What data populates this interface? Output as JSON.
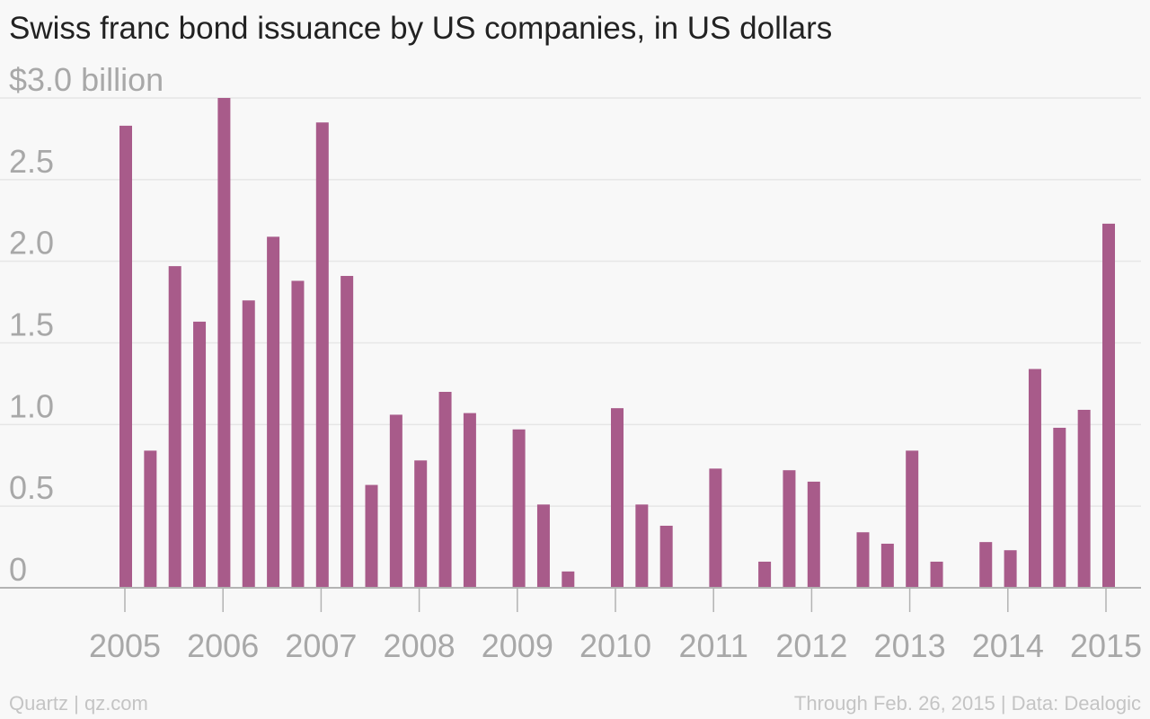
{
  "header": {
    "title": "Swiss franc bond issuance by US companies, in US dollars"
  },
  "footer": {
    "source_left": "Quartz | qz.com",
    "source_right": "Through Feb. 26, 2015 | Data: Dealogic"
  },
  "colors": {
    "bar": "#a85b8a",
    "grid": "#e6e6e6",
    "axis": "#b3b3b3",
    "tick_text": "#a8a8a8",
    "background": "#f8f8f8"
  },
  "chart_data": {
    "type": "bar",
    "title": "Swiss franc bond issuance by US companies, in US dollars",
    "xlabel": "",
    "ylabel": "",
    "ylim": [
      0,
      3.0
    ],
    "y_ticks": [
      {
        "value": 0,
        "label": "0"
      },
      {
        "value": 0.5,
        "label": "0.5"
      },
      {
        "value": 1.0,
        "label": "1.0"
      },
      {
        "value": 1.5,
        "label": "1.5"
      },
      {
        "value": 2.0,
        "label": "2.0"
      },
      {
        "value": 2.5,
        "label": "2.5"
      },
      {
        "value": 3.0,
        "label": "$3.0 billion"
      }
    ],
    "x_ticks": [
      "2005",
      "2006",
      "2007",
      "2008",
      "2009",
      "2010",
      "2011",
      "2012",
      "2013",
      "2014",
      "2015"
    ],
    "grid": true,
    "legend": "none",
    "categories": [
      "2005 Q1",
      "2005 Q2",
      "2005 Q3",
      "2005 Q4",
      "2006 Q1",
      "2006 Q2",
      "2006 Q3",
      "2006 Q4",
      "2007 Q1",
      "2007 Q2",
      "2007 Q3",
      "2007 Q4",
      "2008 Q1",
      "2008 Q2",
      "2008 Q3",
      "2008 Q4",
      "2009 Q1",
      "2009 Q2",
      "2009 Q3",
      "2009 Q4",
      "2010 Q1",
      "2010 Q2",
      "2010 Q3",
      "2010 Q4",
      "2011 Q1",
      "2011 Q2",
      "2011 Q3",
      "2011 Q4",
      "2012 Q1",
      "2012 Q2",
      "2012 Q3",
      "2012 Q4",
      "2013 Q1",
      "2013 Q2",
      "2013 Q3",
      "2013 Q4",
      "2014 Q1",
      "2014 Q2",
      "2014 Q3",
      "2014 Q4",
      "2015 Q1"
    ],
    "values": [
      2.83,
      0.84,
      1.97,
      1.63,
      3.0,
      1.76,
      2.15,
      1.88,
      2.85,
      1.91,
      0.63,
      1.06,
      0.78,
      1.2,
      1.07,
      0.0,
      0.97,
      0.51,
      0.1,
      0.0,
      1.1,
      0.51,
      0.38,
      0.0,
      0.73,
      0.0,
      0.16,
      0.72,
      0.65,
      0.0,
      0.34,
      0.27,
      0.84,
      0.16,
      0.0,
      0.28,
      0.23,
      1.34,
      0.98,
      1.09,
      2.23
    ]
  }
}
